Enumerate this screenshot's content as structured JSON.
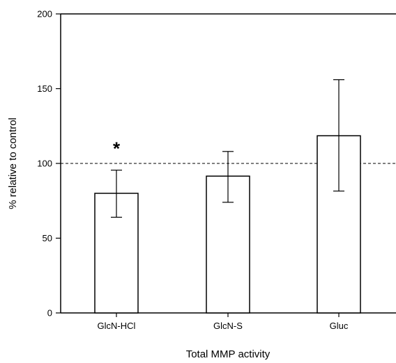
{
  "chart_data": {
    "type": "bar",
    "categories": [
      "GlcN-HCl",
      "GlcN-S",
      "Gluc"
    ],
    "values": [
      80,
      91.5,
      118.5
    ],
    "error_low": [
      64,
      74,
      81.5
    ],
    "error_high": [
      95.5,
      108,
      156
    ],
    "xlabel": "Total MMP activity",
    "ylabel": "% relative to control",
    "ylim": [
      0,
      200
    ],
    "yticks": [
      0,
      50,
      100,
      150,
      200
    ],
    "reference_line": {
      "value": 100,
      "style": "dashed"
    },
    "annotations": [
      {
        "text": "*",
        "category": "GlcN-HCl"
      }
    ],
    "bar_fill": "#ffffff",
    "bar_stroke": "#000000",
    "grid": false,
    "legend": "none"
  }
}
